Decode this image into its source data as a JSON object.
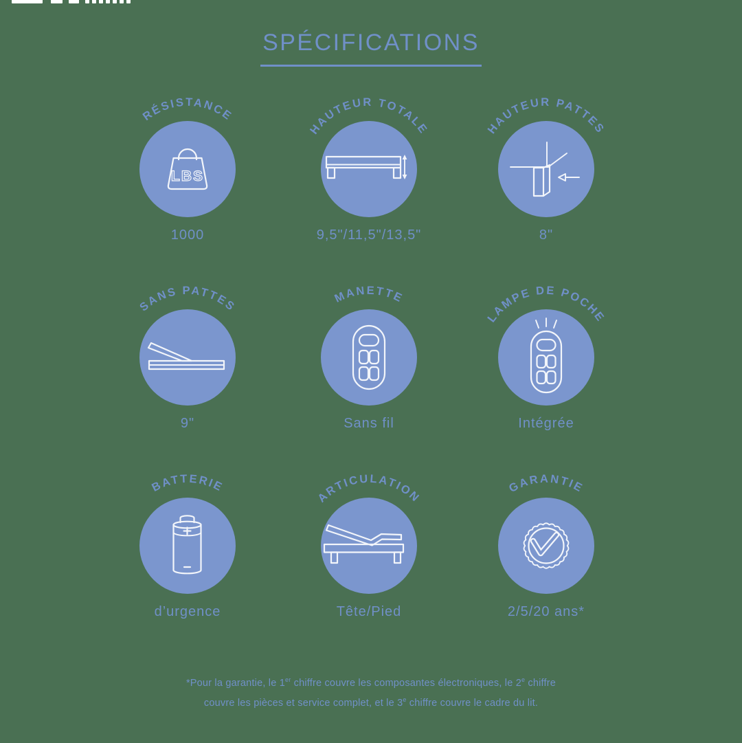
{
  "colors": {
    "background": "#4A7053",
    "text_blue": "#7090C8",
    "circle_blue": "#7B96CE",
    "icon_stroke": "#F2F5FA",
    "logo_white": "#FFFFFF"
  },
  "header": {
    "title": "SPÉCIFICATIONS"
  },
  "specs": [
    {
      "key": "resistance",
      "label": "RÉSISTANCE",
      "value": "1000",
      "icon": "weight-bag-lbs-icon",
      "icon_text": "LBS"
    },
    {
      "key": "hauteur-totale",
      "label": "HAUTEUR TOTALE",
      "value": "9,5\"/11,5\"/13,5\"",
      "icon": "bed-height-arrow-icon"
    },
    {
      "key": "hauteur-pattes",
      "label": "HAUTEUR PATTES",
      "value": "8\"",
      "icon": "bed-leg-arrow-icon"
    },
    {
      "key": "sans-pattes",
      "label": "SANS PATTES",
      "value": "9\"",
      "icon": "legless-bed-icon"
    },
    {
      "key": "manette",
      "label": "MANETTE",
      "value": "Sans fil",
      "icon": "remote-control-icon"
    },
    {
      "key": "lampe-de-poche",
      "label": "LAMPE DE POCHE",
      "value": "Intégrée",
      "icon": "remote-flashlight-icon"
    },
    {
      "key": "batterie",
      "label": "BATTERIE",
      "value": "d’urgence",
      "icon": "battery-icon"
    },
    {
      "key": "articulation",
      "label": "ARTICULATION",
      "value": "Tête/Pied",
      "icon": "articulated-bed-icon"
    },
    {
      "key": "garantie",
      "label": "GARANTIE",
      "value": "2/5/20 ans*",
      "icon": "warranty-badge-icon"
    }
  ],
  "footnote": {
    "line1_pre": "*Pour la garantie, le 1",
    "line1_sup1": "er",
    "line1_mid": " chiffre couvre les composantes électroniques, le 2",
    "line1_sup2": "e",
    "line1_end": " chiffre",
    "line2_pre": "couvre les pièces et service complet, et le 3",
    "line2_sup": "e",
    "line2_end": " chiffre couvre le cadre du lit."
  }
}
